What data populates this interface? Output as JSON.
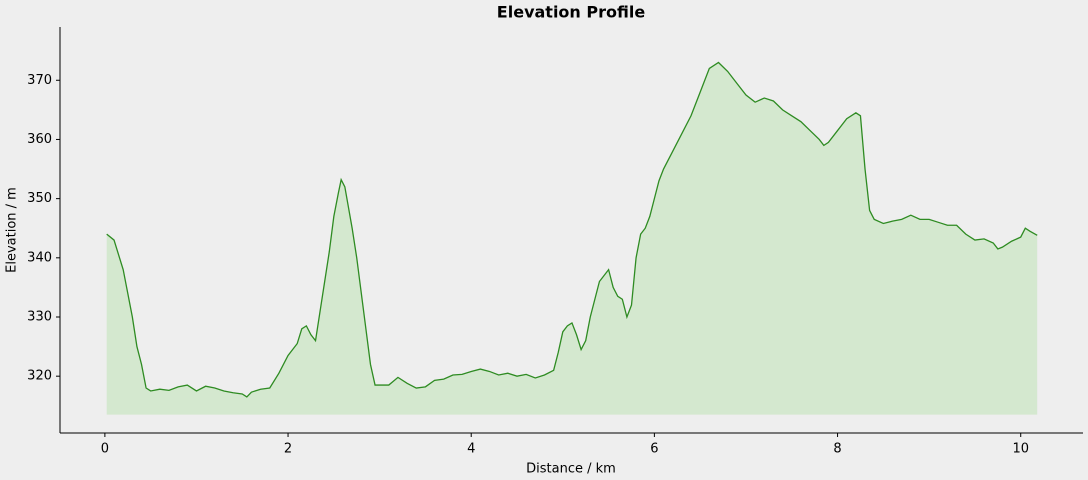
{
  "chart_data": {
    "type": "area",
    "title": "Elevation Profile",
    "x_label": "Distance / km",
    "y_label": "Elevation / m",
    "line_color": "#2e8b22",
    "fill_color": "#d4e8cf",
    "baseline": 313.5,
    "xlim": [
      -0.49,
      10.68
    ],
    "ylim": [
      310.4,
      379
    ],
    "xticks": [
      0,
      2,
      4,
      6,
      8,
      10
    ],
    "yticks": [
      320,
      330,
      340,
      350,
      360,
      370
    ],
    "x": [
      0.02,
      0.1,
      0.2,
      0.3,
      0.35,
      0.4,
      0.45,
      0.5,
      0.6,
      0.7,
      0.8,
      0.9,
      1.0,
      1.1,
      1.2,
      1.3,
      1.4,
      1.5,
      1.55,
      1.6,
      1.7,
      1.8,
      1.9,
      2.0,
      2.1,
      2.15,
      2.2,
      2.25,
      2.3,
      2.35,
      2.4,
      2.45,
      2.5,
      2.55,
      2.58,
      2.62,
      2.7,
      2.75,
      2.8,
      2.85,
      2.9,
      2.95,
      3.0,
      3.1,
      3.2,
      3.3,
      3.4,
      3.5,
      3.6,
      3.7,
      3.8,
      3.9,
      4.0,
      4.1,
      4.2,
      4.3,
      4.4,
      4.5,
      4.6,
      4.7,
      4.8,
      4.9,
      4.95,
      5.0,
      5.05,
      5.1,
      5.15,
      5.2,
      5.25,
      5.3,
      5.4,
      5.5,
      5.55,
      5.6,
      5.65,
      5.7,
      5.75,
      5.8,
      5.85,
      5.9,
      5.95,
      6.0,
      6.05,
      6.1,
      6.2,
      6.3,
      6.4,
      6.5,
      6.6,
      6.7,
      6.8,
      6.9,
      7.0,
      7.1,
      7.2,
      7.3,
      7.4,
      7.5,
      7.6,
      7.7,
      7.8,
      7.85,
      7.9,
      8.0,
      8.1,
      8.2,
      8.25,
      8.3,
      8.35,
      8.4,
      8.5,
      8.6,
      8.7,
      8.8,
      8.9,
      9.0,
      9.1,
      9.2,
      9.3,
      9.4,
      9.5,
      9.6,
      9.7,
      9.75,
      9.8,
      9.9,
      10.0,
      10.05,
      10.1,
      10.18
    ],
    "values": [
      344,
      343,
      338,
      330,
      325,
      322,
      318,
      317.5,
      317.8,
      317.6,
      318.2,
      318.5,
      317.5,
      318.3,
      318,
      317.5,
      317.2,
      317,
      316.5,
      317.3,
      317.8,
      318,
      320.5,
      323.5,
      325.5,
      328,
      328.5,
      327,
      326,
      331,
      336,
      341,
      347,
      351,
      353.2,
      352,
      345,
      340,
      334,
      328,
      322,
      318.5,
      318.5,
      318.5,
      319.8,
      318.8,
      318,
      318.2,
      319.3,
      319.5,
      320.2,
      320.3,
      320.8,
      321.2,
      320.8,
      320.2,
      320.5,
      320,
      320.3,
      319.7,
      320.2,
      321,
      324,
      327.5,
      328.5,
      329,
      327,
      324.5,
      326,
      330,
      336,
      338,
      335,
      333.5,
      333,
      330,
      332,
      340,
      344,
      345,
      347,
      350,
      353,
      355,
      358,
      361,
      364,
      368,
      372,
      373,
      371.5,
      369.5,
      367.5,
      366.3,
      367,
      366.5,
      365,
      364,
      363,
      361.5,
      360,
      359,
      359.5,
      361.5,
      363.5,
      364.5,
      364,
      355,
      348,
      346.5,
      345.8,
      346.2,
      346.5,
      347.2,
      346.5,
      346.5,
      346,
      345.5,
      345.5,
      344,
      343,
      343.2,
      342.5,
      341.5,
      341.8,
      342.8,
      343.5,
      345,
      344.5,
      343.8
    ]
  }
}
